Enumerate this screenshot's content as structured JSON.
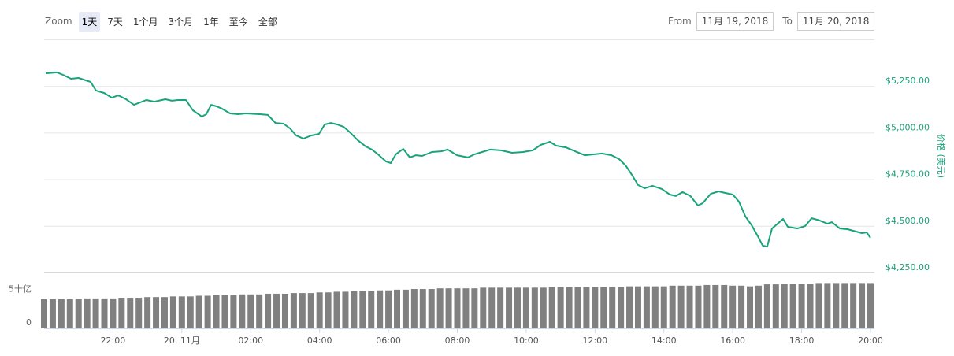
{
  "controls": {
    "zoom_label": "Zoom",
    "range_buttons": [
      "1天",
      "7天",
      "1个月",
      "3个月",
      "1年",
      "至今",
      "全部"
    ],
    "selected_index": 0,
    "from_label": "From",
    "from_date": "11月 19, 2018",
    "to_label": "To",
    "to_date": "11月 20, 2018"
  },
  "chart_data": [
    {
      "type": "line",
      "y_axis_label": "价格 (美元)",
      "grid": true,
      "xlim": [
        20,
        44
      ],
      "ylim": [
        4250,
        5500
      ],
      "yticks": [
        {
          "value": 4250,
          "label": "$4,250.00"
        },
        {
          "value": 4500,
          "label": "$4,500.00"
        },
        {
          "value": 4750,
          "label": "$4,750.00"
        },
        {
          "value": 5000,
          "label": "$5,000.00"
        },
        {
          "value": 5250,
          "label": "$5,250.00"
        }
      ],
      "x": [
        20.05,
        20.37,
        20.55,
        20.78,
        21.0,
        21.35,
        21.51,
        21.74,
        21.97,
        22.15,
        22.38,
        22.61,
        22.79,
        22.97,
        23.2,
        23.52,
        23.71,
        23.89,
        24.12,
        24.32,
        24.58,
        24.71,
        24.85,
        25.01,
        25.17,
        25.4,
        25.63,
        25.86,
        26.27,
        26.5,
        26.72,
        26.95,
        27.14,
        27.32,
        27.53,
        27.76,
        27.98,
        28.15,
        28.33,
        28.51,
        28.7,
        28.88,
        29.11,
        29.34,
        29.52,
        29.7,
        29.93,
        30.07,
        30.21,
        30.43,
        30.62,
        30.8,
        30.98,
        31.26,
        31.53,
        31.72,
        31.99,
        32.31,
        32.49,
        32.72,
        32.95,
        33.27,
        33.59,
        33.91,
        34.19,
        34.42,
        34.69,
        34.87,
        35.15,
        35.42,
        35.7,
        35.93,
        36.2,
        36.48,
        36.7,
        36.89,
        37.07,
        37.25,
        37.44,
        37.67,
        37.94,
        38.17,
        38.35,
        38.54,
        38.77,
        38.99,
        39.13,
        39.36,
        39.59,
        39.77,
        40.0,
        40.18,
        40.37,
        40.55,
        40.73,
        40.87,
        41.0,
        41.14,
        41.28,
        41.46,
        41.6,
        41.88,
        42.1,
        42.29,
        42.52,
        42.75,
        42.88,
        43.11,
        43.34,
        43.57,
        43.75,
        43.89,
        44.0
      ],
      "series": [
        {
          "color": "#18a37a",
          "values": [
            5318,
            5323,
            5310,
            5289,
            5293,
            5272,
            5225,
            5213,
            5187,
            5200,
            5179,
            5149,
            5162,
            5175,
            5166,
            5179,
            5171,
            5175,
            5175,
            5120,
            5086,
            5099,
            5149,
            5141,
            5128,
            5103,
            5099,
            5103,
            5099,
            5095,
            5052,
            5048,
            5023,
            4985,
            4968,
            4985,
            4993,
            5044,
            5052,
            5044,
            5031,
            5002,
            4959,
            4926,
            4909,
            4883,
            4845,
            4837,
            4883,
            4913,
            4867,
            4879,
            4875,
            4896,
            4900,
            4909,
            4879,
            4867,
            4883,
            4896,
            4909,
            4905,
            4892,
            4896,
            4905,
            4934,
            4951,
            4930,
            4921,
            4900,
            4879,
            4883,
            4888,
            4879,
            4858,
            4824,
            4774,
            4719,
            4702,
            4715,
            4698,
            4668,
            4660,
            4681,
            4660,
            4609,
            4622,
            4672,
            4685,
            4677,
            4668,
            4630,
            4550,
            4503,
            4444,
            4394,
            4389,
            4486,
            4508,
            4537,
            4495,
            4486,
            4499,
            4541,
            4529,
            4512,
            4520,
            4486,
            4482,
            4470,
            4461,
            4465,
            4436
          ]
        }
      ]
    },
    {
      "type": "bar",
      "color": "#808080",
      "xlim": [
        20,
        44
      ],
      "ylim": [
        0,
        8.5
      ],
      "yticks": [
        0,
        {
          "value": 5,
          "label": "5十亿"
        }
      ],
      "xticks": [
        {
          "value": 22,
          "label": "22:00"
        },
        {
          "value": 24,
          "label": "20. 11月"
        },
        {
          "value": 26,
          "label": "02:00"
        },
        {
          "value": 28,
          "label": "04:00"
        },
        {
          "value": 30,
          "label": "06:00"
        },
        {
          "value": 32,
          "label": "08:00"
        },
        {
          "value": 34,
          "label": "10:00"
        },
        {
          "value": 36,
          "label": "12:00"
        },
        {
          "value": 38,
          "label": "14:00"
        },
        {
          "value": 40,
          "label": "16:00"
        },
        {
          "value": 42,
          "label": "18:00"
        },
        {
          "value": 44,
          "label": "20:00"
        }
      ],
      "x": [
        20.0,
        20.25,
        20.5,
        20.75,
        21.0,
        21.25,
        21.5,
        21.75,
        22.0,
        22.25,
        22.5,
        22.75,
        23.0,
        23.25,
        23.5,
        23.75,
        24.0,
        24.25,
        24.5,
        24.75,
        25.0,
        25.25,
        25.5,
        25.75,
        26.0,
        26.25,
        26.5,
        26.75,
        27.0,
        27.25,
        27.5,
        27.75,
        28.0,
        28.25,
        28.5,
        28.75,
        29.0,
        29.25,
        29.5,
        29.75,
        30.0,
        30.25,
        30.5,
        30.75,
        31.0,
        31.25,
        31.5,
        31.75,
        32.0,
        32.25,
        32.5,
        32.75,
        33.0,
        33.25,
        33.5,
        33.75,
        34.0,
        34.25,
        34.5,
        34.75,
        35.0,
        35.25,
        35.5,
        35.75,
        36.0,
        36.25,
        36.5,
        36.75,
        37.0,
        37.25,
        37.5,
        37.75,
        38.0,
        38.25,
        38.5,
        38.75,
        39.0,
        39.25,
        39.5,
        39.75,
        40.0,
        40.25,
        40.5,
        40.75,
        41.0,
        41.25,
        41.5,
        41.75,
        42.0,
        42.25,
        42.5,
        42.75,
        43.0,
        43.25,
        43.5,
        43.75,
        44.0
      ],
      "values": [
        4.4,
        4.4,
        4.4,
        4.4,
        4.4,
        4.5,
        4.5,
        4.5,
        4.5,
        4.6,
        4.6,
        4.6,
        4.7,
        4.7,
        4.7,
        4.8,
        4.8,
        4.8,
        4.9,
        4.9,
        5.0,
        5.0,
        5.0,
        5.1,
        5.1,
        5.1,
        5.2,
        5.2,
        5.2,
        5.3,
        5.3,
        5.3,
        5.4,
        5.4,
        5.5,
        5.5,
        5.6,
        5.6,
        5.6,
        5.7,
        5.7,
        5.8,
        5.8,
        5.9,
        5.9,
        5.9,
        6.0,
        6.0,
        6.0,
        6.0,
        6.0,
        6.1,
        6.1,
        6.1,
        6.1,
        6.1,
        6.1,
        6.1,
        6.1,
        6.2,
        6.2,
        6.2,
        6.2,
        6.2,
        6.2,
        6.2,
        6.2,
        6.2,
        6.3,
        6.3,
        6.3,
        6.3,
        6.3,
        6.4,
        6.4,
        6.4,
        6.4,
        6.5,
        6.5,
        6.5,
        6.4,
        6.4,
        6.3,
        6.4,
        6.6,
        6.6,
        6.7,
        6.7,
        6.7,
        6.7,
        6.8,
        6.8,
        6.8,
        6.8,
        6.8,
        6.8,
        6.8
      ]
    }
  ]
}
